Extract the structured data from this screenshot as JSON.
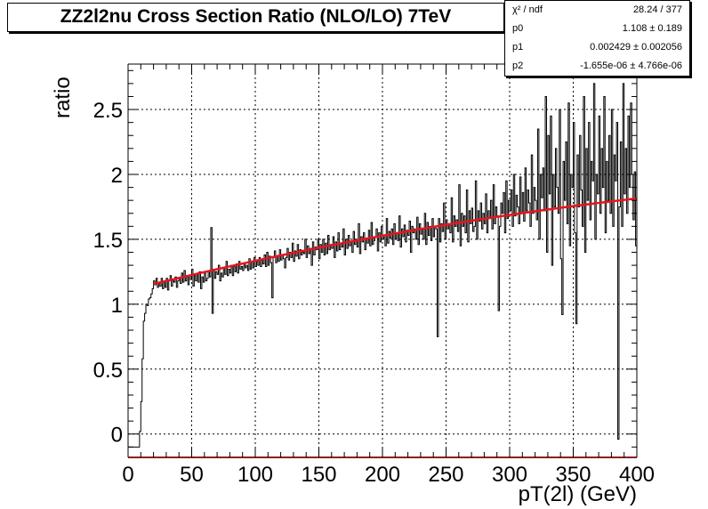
{
  "chart_data": {
    "type": "histogram-with-fit",
    "title": "ZZ2l2nu Cross Section Ratio (NLO/LO) 7TeV",
    "xlabel": "pT(2l) (GeV)",
    "ylabel": "ratio",
    "xlim": [
      0,
      400
    ],
    "ylim": [
      -0.18,
      2.85
    ],
    "xticks": [
      0,
      50,
      100,
      150,
      200,
      250,
      300,
      350,
      400
    ],
    "yticks": [
      0,
      0.5,
      1,
      1.5,
      2,
      2.5
    ],
    "xtick_labels": [
      "0",
      "50",
      "100",
      "150",
      "200",
      "250",
      "300",
      "350",
      "400"
    ],
    "ytick_labels": [
      "0",
      "0.5",
      "1",
      "1.5",
      "2",
      "2.5"
    ],
    "grid": true,
    "bin_width": 1,
    "fit_range": [
      20,
      400
    ],
    "fit": {
      "p0": 1.108,
      "p1": 0.002429,
      "p2": -1.655e-06
    },
    "series": [
      {
        "name": "NLO/LO ratio",
        "x_start": 0,
        "values": [
          -0.1,
          -0.1,
          -0.1,
          -0.1,
          -0.1,
          -0.1,
          -0.1,
          -0.1,
          -0.1,
          0.02,
          0.25,
          0.58,
          0.87,
          0.93,
          1.0,
          0.99,
          1.04,
          1.05,
          1.08,
          1.12,
          1.18,
          1.15,
          1.2,
          1.13,
          1.16,
          1.14,
          1.2,
          1.12,
          1.17,
          1.13,
          1.2,
          1.11,
          1.18,
          1.22,
          1.14,
          1.18,
          1.17,
          1.21,
          1.13,
          1.18,
          1.2,
          1.16,
          1.24,
          1.17,
          1.26,
          1.18,
          1.21,
          1.15,
          1.22,
          1.19,
          1.27,
          1.14,
          1.22,
          1.18,
          1.23,
          1.17,
          1.25,
          1.12,
          1.21,
          1.17,
          1.24,
          1.18,
          1.2,
          1.26,
          1.21,
          1.59,
          0.93,
          1.27,
          1.2,
          1.25,
          1.23,
          1.3,
          1.18,
          1.24,
          1.21,
          1.28,
          1.23,
          1.33,
          1.22,
          1.27,
          1.24,
          1.3,
          1.22,
          1.29,
          1.25,
          1.31,
          1.24,
          1.33,
          1.27,
          1.29,
          1.26,
          1.32,
          1.28,
          1.3,
          1.26,
          1.35,
          1.27,
          1.33,
          1.28,
          1.36,
          1.29,
          1.33,
          1.3,
          1.36,
          1.29,
          1.34,
          1.31,
          1.38,
          1.29,
          1.4,
          1.3,
          1.37,
          1.32,
          1.05,
          1.36,
          1.41,
          1.32,
          1.37,
          1.33,
          1.42,
          1.34,
          1.38,
          1.35,
          1.28,
          1.36,
          1.43,
          1.34,
          1.4,
          1.36,
          1.47,
          1.33,
          1.41,
          1.37,
          1.46,
          1.35,
          1.42,
          1.38,
          1.4,
          1.39,
          1.5,
          1.36,
          1.45,
          1.39,
          1.43,
          1.3,
          1.48,
          1.38,
          1.44,
          1.42,
          1.5,
          1.35,
          1.46,
          1.4,
          1.5,
          1.38,
          1.47,
          1.39,
          1.53,
          1.42,
          1.46,
          1.43,
          1.52,
          1.36,
          1.48,
          1.41,
          1.55,
          1.42,
          1.47,
          1.44,
          1.58,
          1.38,
          1.5,
          1.43,
          1.53,
          1.45,
          1.48,
          1.4,
          1.56,
          1.46,
          1.5,
          1.44,
          1.62,
          1.39,
          1.52,
          1.48,
          1.55,
          1.42,
          1.5,
          1.47,
          1.57,
          1.45,
          1.63,
          1.46,
          1.49,
          1.52,
          1.58,
          1.41,
          1.55,
          1.48,
          1.6,
          1.5,
          1.53,
          1.45,
          1.66,
          1.47,
          1.56,
          1.51,
          1.58,
          1.46,
          1.62,
          1.5,
          1.55,
          1.49,
          1.68,
          1.44,
          1.58,
          1.52,
          1.61,
          1.48,
          1.57,
          1.53,
          1.64,
          1.4,
          1.6,
          1.55,
          1.58,
          1.5,
          1.67,
          1.46,
          1.62,
          1.54,
          1.58,
          1.5,
          1.7,
          1.46,
          1.63,
          1.53,
          1.6,
          1.49,
          1.66,
          1.52,
          1.6,
          1.58,
          0.75,
          1.66,
          1.48,
          1.62,
          1.56,
          1.78,
          1.5,
          1.65,
          1.58,
          1.62,
          1.55,
          1.82,
          1.48,
          1.68,
          1.6,
          1.65,
          1.56,
          1.92,
          1.45,
          1.7,
          1.6,
          1.68,
          1.55,
          1.88,
          1.48,
          1.72,
          1.62,
          1.74,
          1.56,
          1.6,
          1.95,
          1.5,
          1.72,
          1.64,
          1.78,
          1.58,
          1.7,
          1.62,
          1.85,
          1.55,
          1.72,
          1.66,
          1.8,
          1.58,
          1.92,
          1.62,
          1.75,
          1.68,
          0.95,
          1.6,
          1.78,
          1.7,
          1.86,
          1.55,
          1.95,
          1.66,
          1.8,
          1.72,
          1.88,
          1.6,
          2.0,
          1.68,
          1.84,
          1.75,
          1.62,
          1.98,
          1.7,
          1.86,
          1.64,
          2.05,
          1.72,
          1.88,
          1.78,
          1.6,
          2.15,
          1.7,
          1.9,
          1.8,
          1.65,
          2.35,
          1.5,
          2.0,
          1.82,
          2.05,
          1.72,
          2.6,
          1.4,
          2.3,
          1.85,
          2.45,
          1.3,
          2.0,
          1.75,
          2.2,
          1.9,
          1.7,
          2.5,
          1.35,
          0.92,
          2.1,
          1.8,
          2.25,
          1.62,
          2.55,
          1.45,
          2.0,
          1.9,
          2.4,
          1.55,
          0.85,
          2.15,
          1.75,
          2.3,
          1.88,
          1.6,
          2.6,
          1.4,
          2.2,
          1.8,
          2.4,
          1.65,
          2.1,
          1.95,
          2.7,
          1.5,
          2.0,
          1.85,
          2.45,
          1.7,
          2.2,
          1.9,
          2.6,
          1.55,
          2.1,
          1.8,
          2.3,
          1.7,
          2.5,
          1.6,
          2.15,
          1.95,
          2.4,
          -0.04,
          1.75,
          2.25,
          1.6,
          2.7,
          1.85,
          2.2,
          1.7,
          2.45,
          1.9,
          2.55,
          2.0,
          1.65,
          2.02,
          1.45
        ]
      }
    ],
    "stats": [
      {
        "key": "χ² / ndf",
        "value": "28.24 / 377"
      },
      {
        "key": "p0",
        "value": "1.108 ± 0.189"
      },
      {
        "key": "p1",
        "value": "0.002429 ± 0.002056"
      },
      {
        "key": "p2",
        "value": "-1.655e-06 ± 4.766e-06"
      }
    ],
    "colors": {
      "histogram": "#000000",
      "fit": "#e8141e",
      "grid": "#000000",
      "frame": "#000000",
      "x_axis_accent": "#8b2020"
    }
  }
}
